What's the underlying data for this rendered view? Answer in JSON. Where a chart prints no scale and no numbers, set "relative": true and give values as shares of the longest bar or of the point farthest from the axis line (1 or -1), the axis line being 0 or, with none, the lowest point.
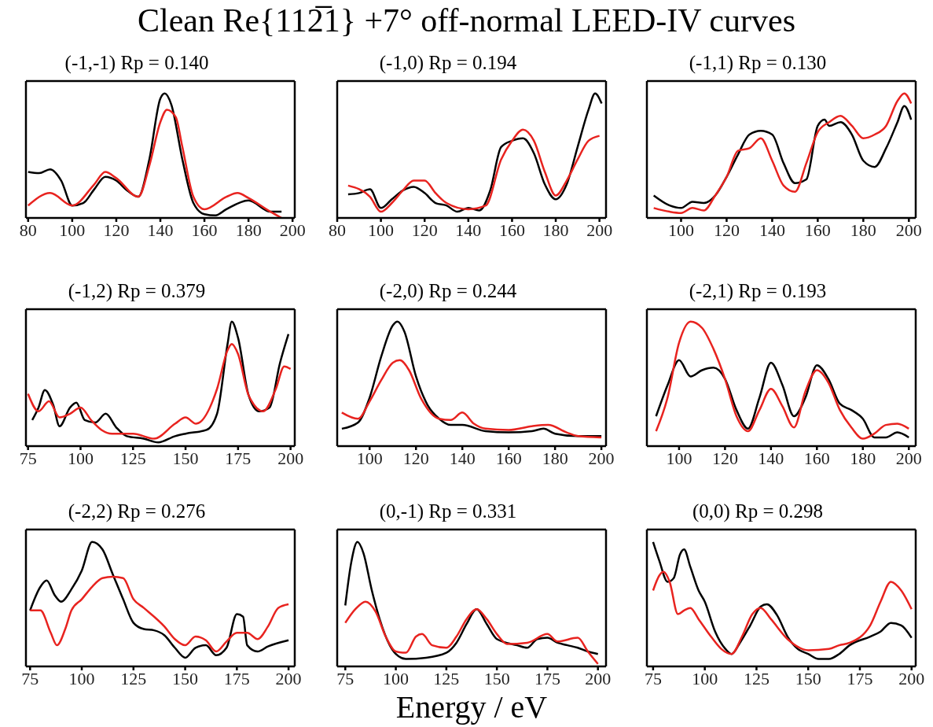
{
  "chart_data": [
    {
      "type": "line",
      "title": "(-1,-1)  Rp = 0.140",
      "relative": true,
      "xlim": [
        79,
        201
      ],
      "xticks": [
        80,
        100,
        120,
        140,
        160,
        180,
        200
      ],
      "annotations": [
        "Clean Re{112̅1} +7° off-normal LEED-IV curves"
      ],
      "series": [
        {
          "color": "#000000",
          "x": [
            80,
            85,
            90,
            95,
            100,
            105,
            110,
            115,
            120,
            125,
            130,
            135,
            140,
            142,
            145,
            150,
            155,
            160,
            165,
            170,
            180,
            190,
            195
          ],
          "values": [
            0.37,
            0.36,
            0.39,
            0.3,
            0.1,
            0.12,
            0.23,
            0.33,
            0.3,
            0.22,
            0.17,
            0.47,
            0.96,
            1.0,
            0.91,
            0.47,
            0.12,
            0.03,
            0.02,
            0.07,
            0.14,
            0.05,
            0.05
          ]
        },
        {
          "color": "#e8231f",
          "x": [
            80,
            90,
            100,
            110,
            115,
            120,
            130,
            135,
            140,
            143,
            147,
            150,
            155,
            160,
            170,
            175,
            180,
            190,
            195
          ],
          "values": [
            0.1,
            0.2,
            0.1,
            0.27,
            0.37,
            0.32,
            0.17,
            0.42,
            0.77,
            0.87,
            0.81,
            0.57,
            0.17,
            0.07,
            0.17,
            0.2,
            0.16,
            0.05,
            0.0
          ]
        }
      ]
    },
    {
      "type": "line",
      "title": "(-1,0)  Rp = 0.194",
      "relative": true,
      "xlim": [
        80,
        203
      ],
      "xticks": [
        80,
        100,
        120,
        140,
        160,
        180,
        200
      ],
      "series": [
        {
          "color": "#000000",
          "x": [
            85,
            90,
            95,
            100,
            105,
            110,
            115,
            120,
            125,
            130,
            135,
            140,
            145,
            150,
            155,
            160,
            165,
            170,
            175,
            180,
            185,
            190,
            195,
            198,
            201
          ],
          "values": [
            0.19,
            0.2,
            0.23,
            0.08,
            0.15,
            0.22,
            0.25,
            0.2,
            0.12,
            0.1,
            0.05,
            0.08,
            0.06,
            0.22,
            0.57,
            0.62,
            0.64,
            0.52,
            0.27,
            0.15,
            0.27,
            0.57,
            0.87,
            1.0,
            0.92
          ]
        },
        {
          "color": "#e8231f",
          "x": [
            85,
            95,
            100,
            105,
            110,
            115,
            120,
            125,
            130,
            140,
            148,
            155,
            160,
            165,
            170,
            175,
            180,
            185,
            190,
            195,
            200
          ],
          "values": [
            0.26,
            0.17,
            0.05,
            0.12,
            0.22,
            0.3,
            0.3,
            0.2,
            0.12,
            0.07,
            0.1,
            0.47,
            0.62,
            0.71,
            0.62,
            0.37,
            0.18,
            0.3,
            0.47,
            0.62,
            0.66
          ]
        }
      ]
    },
    {
      "type": "line",
      "title": "(-1,1)  Rp = 0.130",
      "relative": true,
      "xlim": [
        85,
        203
      ],
      "xticks": [
        100,
        120,
        140,
        160,
        180,
        200
      ],
      "series": [
        {
          "color": "#000000",
          "x": [
            88,
            95,
            100,
            105,
            110,
            115,
            120,
            125,
            130,
            135,
            140,
            145,
            150,
            155,
            160,
            163,
            165,
            170,
            175,
            180,
            185,
            190,
            195,
            198,
            201
          ],
          "values": [
            0.18,
            0.1,
            0.08,
            0.13,
            0.12,
            0.18,
            0.33,
            0.51,
            0.67,
            0.7,
            0.67,
            0.44,
            0.28,
            0.31,
            0.74,
            0.79,
            0.74,
            0.77,
            0.67,
            0.46,
            0.41,
            0.56,
            0.77,
            0.9,
            0.79
          ]
        },
        {
          "color": "#e8231f",
          "x": [
            88,
            95,
            100,
            105,
            110,
            115,
            120,
            125,
            130,
            135,
            140,
            145,
            150,
            155,
            160,
            165,
            170,
            175,
            180,
            185,
            190,
            195,
            198,
            201
          ],
          "values": [
            0.08,
            0.05,
            0.04,
            0.08,
            0.06,
            0.18,
            0.33,
            0.54,
            0.56,
            0.64,
            0.46,
            0.26,
            0.21,
            0.44,
            0.69,
            0.77,
            0.82,
            0.74,
            0.64,
            0.67,
            0.74,
            0.94,
            1.0,
            0.92
          ]
        }
      ]
    },
    {
      "type": "line",
      "title": "(-1,2)  Rp = 0.379",
      "relative": true,
      "xlim": [
        74,
        202
      ],
      "xticks": [
        75,
        100,
        125,
        150,
        175,
        200
      ],
      "series": [
        {
          "color": "#000000",
          "x": [
            77,
            80,
            83,
            87,
            90,
            95,
            98,
            102,
            107,
            112,
            117,
            122,
            130,
            137,
            145,
            150,
            160,
            165,
            170,
            172,
            175,
            180,
            185,
            190,
            195,
            199
          ],
          "values": [
            0.21,
            0.31,
            0.45,
            0.33,
            0.16,
            0.31,
            0.35,
            0.21,
            0.19,
            0.26,
            0.15,
            0.08,
            0.06,
            0.03,
            0.08,
            0.1,
            0.13,
            0.26,
            0.82,
            1.0,
            0.87,
            0.41,
            0.28,
            0.31,
            0.67,
            0.9
          ]
        },
        {
          "color": "#e8231f",
          "x": [
            75,
            80,
            85,
            90,
            95,
            100,
            105,
            110,
            115,
            125,
            135,
            145,
            150,
            155,
            165,
            170,
            172,
            175,
            180,
            187,
            193,
            197,
            200
          ],
          "values": [
            0.42,
            0.28,
            0.36,
            0.23,
            0.26,
            0.31,
            0.21,
            0.13,
            0.1,
            0.1,
            0.06,
            0.18,
            0.23,
            0.18,
            0.46,
            0.77,
            0.82,
            0.74,
            0.41,
            0.28,
            0.46,
            0.64,
            0.62
          ]
        }
      ]
    },
    {
      "type": "line",
      "title": "(-2,0)  Rp = 0.244",
      "relative": true,
      "xlim": [
        86,
        202
      ],
      "xticks": [
        100,
        120,
        140,
        160,
        180,
        200
      ],
      "series": [
        {
          "color": "#000000",
          "x": [
            88,
            95,
            100,
            105,
            110,
            112,
            115,
            120,
            125,
            130,
            135,
            140,
            150,
            160,
            170,
            175,
            180,
            190,
            200
          ],
          "values": [
            0.14,
            0.19,
            0.39,
            0.72,
            0.97,
            1.0,
            0.92,
            0.56,
            0.33,
            0.22,
            0.17,
            0.17,
            0.12,
            0.11,
            0.12,
            0.14,
            0.1,
            0.08,
            0.08
          ]
        },
        {
          "color": "#e8231f",
          "x": [
            88,
            95,
            100,
            105,
            110,
            113,
            117,
            122,
            130,
            135,
            140,
            145,
            150,
            160,
            170,
            177,
            185,
            190,
            200
          ],
          "values": [
            0.27,
            0.22,
            0.36,
            0.53,
            0.67,
            0.69,
            0.61,
            0.39,
            0.22,
            0.21,
            0.27,
            0.18,
            0.14,
            0.13,
            0.16,
            0.17,
            0.11,
            0.08,
            0.07
          ]
        }
      ]
    },
    {
      "type": "line",
      "title": "(-2,1)  Rp = 0.193",
      "relative": true,
      "xlim": [
        86,
        203
      ],
      "xticks": [
        100,
        120,
        140,
        160,
        180,
        200
      ],
      "series": [
        {
          "color": "#000000",
          "x": [
            90,
            95,
            100,
            105,
            110,
            115,
            120,
            125,
            130,
            135,
            140,
            145,
            150,
            155,
            160,
            165,
            170,
            175,
            180,
            185,
            190,
            195,
            200
          ],
          "values": [
            0.24,
            0.49,
            0.69,
            0.56,
            0.61,
            0.63,
            0.54,
            0.29,
            0.14,
            0.39,
            0.67,
            0.49,
            0.24,
            0.39,
            0.65,
            0.54,
            0.34,
            0.29,
            0.22,
            0.07,
            0.07,
            0.11,
            0.07
          ]
        },
        {
          "color": "#e8231f",
          "x": [
            90,
            95,
            100,
            105,
            110,
            115,
            120,
            125,
            130,
            135,
            140,
            145,
            150,
            155,
            160,
            165,
            170,
            175,
            180,
            185,
            190,
            195,
            200
          ],
          "values": [
            0.12,
            0.39,
            0.83,
            1.0,
            0.95,
            0.78,
            0.54,
            0.24,
            0.12,
            0.29,
            0.46,
            0.32,
            0.15,
            0.44,
            0.61,
            0.51,
            0.29,
            0.15,
            0.06,
            0.1,
            0.17,
            0.18,
            0.14
          ]
        }
      ]
    },
    {
      "type": "line",
      "title": "(-2,2)  Rp = 0.276",
      "relative": true,
      "xlim": [
        73,
        203
      ],
      "xticks": [
        75,
        100,
        125,
        150,
        175,
        200
      ],
      "series": [
        {
          "color": "#000000",
          "x": [
            75,
            80,
            83,
            87,
            90,
            95,
            100,
            105,
            110,
            115,
            120,
            125,
            130,
            135,
            140,
            145,
            150,
            155,
            160,
            165,
            170,
            175,
            178,
            180,
            185,
            190,
            200
          ],
          "values": [
            0.45,
            0.64,
            0.69,
            0.57,
            0.52,
            0.62,
            0.77,
            1.0,
            0.94,
            0.74,
            0.54,
            0.35,
            0.3,
            0.29,
            0.25,
            0.15,
            0.07,
            0.15,
            0.17,
            0.09,
            0.15,
            0.42,
            0.4,
            0.17,
            0.12,
            0.16,
            0.21
          ]
        },
        {
          "color": "#e8231f",
          "x": [
            75,
            80,
            85,
            88,
            92,
            95,
            100,
            105,
            110,
            115,
            120,
            125,
            130,
            140,
            145,
            150,
            155,
            160,
            165,
            170,
            175,
            180,
            185,
            190,
            195,
            200
          ],
          "values": [
            0.45,
            0.45,
            0.27,
            0.17,
            0.3,
            0.45,
            0.54,
            0.64,
            0.71,
            0.72,
            0.71,
            0.54,
            0.47,
            0.32,
            0.22,
            0.17,
            0.24,
            0.21,
            0.12,
            0.2,
            0.27,
            0.27,
            0.22,
            0.32,
            0.47,
            0.5
          ]
        }
      ]
    },
    {
      "type": "line",
      "title": "(0,-1)  Rp = 0.331",
      "relative": true,
      "xlim": [
        71,
        204
      ],
      "xticks": [
        75,
        100,
        125,
        150,
        175,
        200
      ],
      "xlabel": "Energy / eV",
      "series": [
        {
          "color": "#000000",
          "x": [
            75,
            78,
            81,
            84,
            88,
            92,
            97,
            100,
            105,
            115,
            125,
            130,
            135,
            140,
            145,
            150,
            160,
            165,
            170,
            175,
            180,
            185,
            190,
            195,
            200
          ],
          "values": [
            0.49,
            0.84,
            1.0,
            0.91,
            0.62,
            0.38,
            0.17,
            0.1,
            0.06,
            0.07,
            0.11,
            0.19,
            0.34,
            0.46,
            0.34,
            0.22,
            0.17,
            0.15,
            0.22,
            0.23,
            0.19,
            0.17,
            0.15,
            0.12,
            0.1
          ]
        },
        {
          "color": "#e8231f",
          "x": [
            75,
            80,
            85,
            90,
            95,
            100,
            105,
            110,
            113,
            118,
            125,
            130,
            135,
            140,
            145,
            150,
            155,
            165,
            175,
            180,
            190,
            195,
            200
          ],
          "values": [
            0.35,
            0.46,
            0.52,
            0.44,
            0.24,
            0.12,
            0.11,
            0.24,
            0.26,
            0.17,
            0.15,
            0.24,
            0.38,
            0.46,
            0.38,
            0.26,
            0.18,
            0.19,
            0.26,
            0.2,
            0.23,
            0.12,
            0.02
          ]
        }
      ]
    },
    {
      "type": "line",
      "title": "(0,0)  Rp = 0.298",
      "relative": true,
      "xlim": [
        72,
        202
      ],
      "xticks": [
        75,
        100,
        125,
        150,
        175,
        200
      ],
      "series": [
        {
          "color": "#000000",
          "x": [
            75,
            78,
            82,
            85,
            88,
            90,
            93,
            97,
            100,
            105,
            110,
            113,
            117,
            122,
            127,
            130,
            135,
            140,
            145,
            150,
            155,
            160,
            165,
            170,
            180,
            185,
            190,
            195,
            200
          ],
          "values": [
            1.0,
            0.85,
            0.68,
            0.71,
            0.9,
            0.94,
            0.8,
            0.61,
            0.52,
            0.28,
            0.14,
            0.1,
            0.19,
            0.33,
            0.48,
            0.5,
            0.41,
            0.24,
            0.14,
            0.1,
            0.06,
            0.06,
            0.1,
            0.17,
            0.24,
            0.28,
            0.35,
            0.33,
            0.23
          ]
        },
        {
          "color": "#e8231f",
          "x": [
            75,
            78,
            80,
            83,
            87,
            90,
            93,
            97,
            103,
            108,
            113,
            118,
            123,
            127,
            132,
            140,
            150,
            160,
            165,
            170,
            180,
            185,
            190,
            195,
            200
          ],
          "values": [
            0.61,
            0.73,
            0.76,
            0.68,
            0.42,
            0.45,
            0.47,
            0.38,
            0.24,
            0.14,
            0.1,
            0.24,
            0.42,
            0.47,
            0.38,
            0.22,
            0.13,
            0.14,
            0.17,
            0.19,
            0.33,
            0.52,
            0.68,
            0.61,
            0.46
          ]
        }
      ]
    }
  ]
}
